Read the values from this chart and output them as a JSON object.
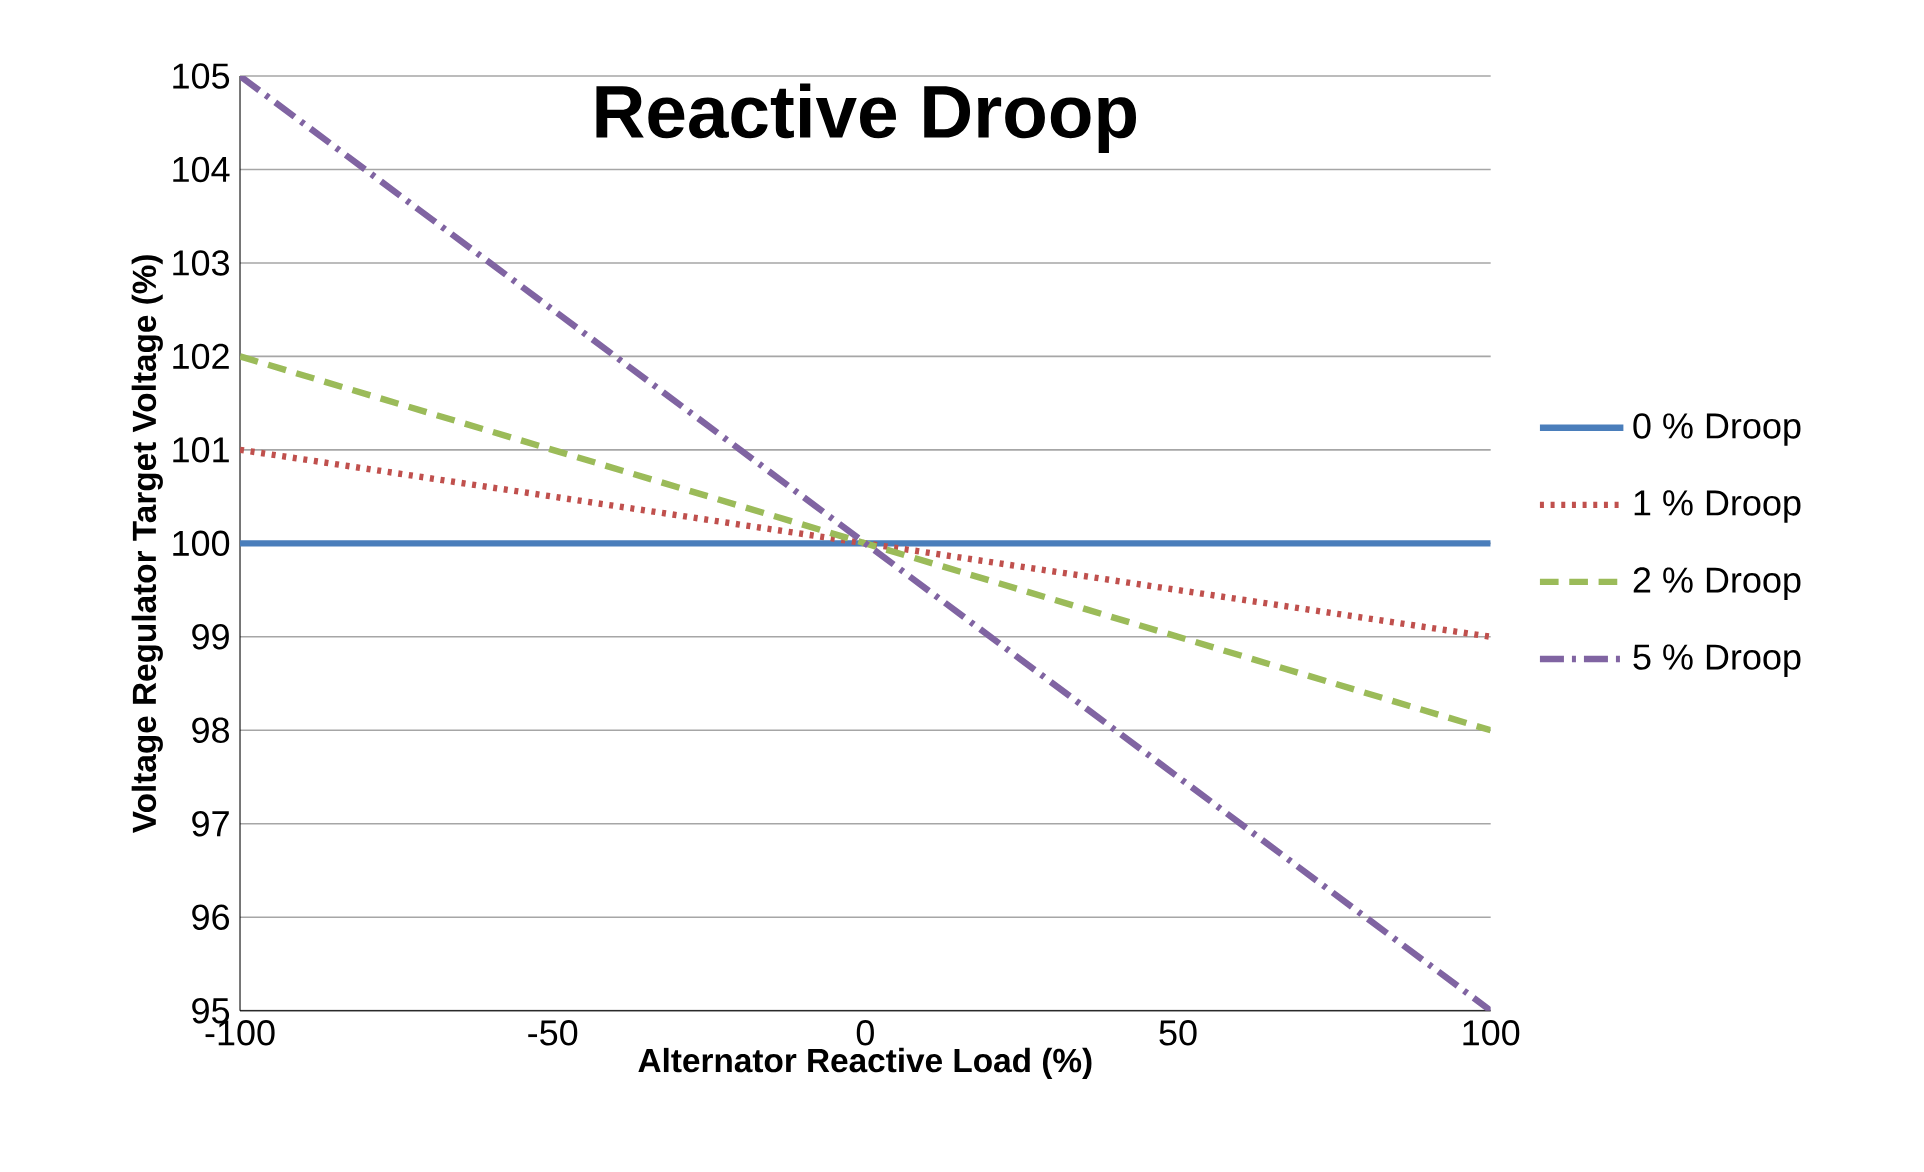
{
  "chart_data": {
    "type": "line",
    "title": "Reactive Droop",
    "xlabel": "Alternator Reactive Load (%)",
    "ylabel": "Voltage Regulator Target Voltage (%)",
    "x": [
      -100,
      100
    ],
    "series": [
      {
        "name": "0 % Droop",
        "color": "#4a7ebb",
        "line_style": "solid",
        "values": [
          100,
          100
        ]
      },
      {
        "name": "1 % Droop",
        "color": "#c0504d",
        "line_style": "dotted",
        "values": [
          101,
          99
        ]
      },
      {
        "name": "2 % Droop",
        "color": "#9bbb59",
        "line_style": "dashed",
        "values": [
          102,
          98
        ]
      },
      {
        "name": "5 % Droop",
        "color": "#8064a2",
        "line_style": "dashdot",
        "values": [
          105,
          95
        ]
      }
    ],
    "xlim": [
      -100,
      100
    ],
    "ylim": [
      95,
      105
    ],
    "xticks": [
      -100,
      -50,
      0,
      50,
      100
    ],
    "yticks": [
      95,
      96,
      97,
      98,
      99,
      100,
      101,
      102,
      103,
      104,
      105
    ],
    "grid": "y",
    "legend": "right",
    "marker": "none"
  }
}
